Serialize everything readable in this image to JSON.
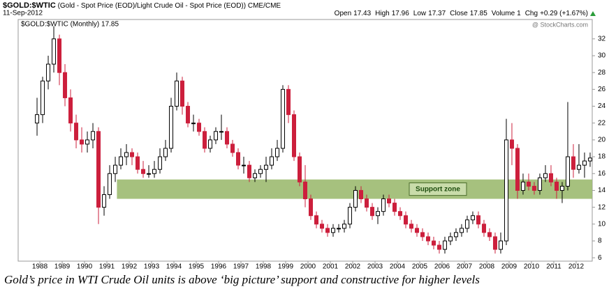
{
  "header": {
    "symbol": "$GOLD:$WTIC",
    "description": "(Gold - Spot Price (EOD)/Light Crude Oil - Spot Price (EOD))",
    "exchange": "CME/CME",
    "date": "11-Sep-2012",
    "quote": [
      {
        "label": "Open",
        "value": "17.43"
      },
      {
        "label": "High",
        "value": "17.96"
      },
      {
        "label": "Low",
        "value": "17.37"
      },
      {
        "label": "Close",
        "value": "17.85"
      },
      {
        "label": "Volume",
        "value": "1"
      },
      {
        "label": "Chg",
        "value": "+0.29 (+1.67%)"
      }
    ],
    "credit": "@ StockCharts.com"
  },
  "chart_data": {
    "type": "candlestick",
    "legend": "$GOLD:$WTIC (Monthly) 17.85",
    "up_color": "#000000",
    "down_color": "#cc1f3c",
    "xlim": [
      1987.03,
      2012.72
    ],
    "ylim": [
      5.6,
      34.3
    ],
    "xticks": [
      1988,
      1989,
      1990,
      1991,
      1992,
      1993,
      1994,
      1995,
      1996,
      1997,
      1998,
      1999,
      2000,
      2001,
      2002,
      2003,
      2004,
      2005,
      2006,
      2007,
      2008,
      2009,
      2010,
      2011,
      2012
    ],
    "yticks": [
      6,
      8,
      10,
      12,
      14,
      16,
      18,
      20,
      22,
      24,
      26,
      28,
      30,
      32
    ],
    "grid": false,
    "support_zone": {
      "label": "Support zone",
      "x_start": 1991.45,
      "low": 13.0,
      "high": 15.3,
      "color": "#9cba70"
    },
    "x": [
      1987.875,
      1988.125,
      1988.375,
      1988.625,
      1988.875,
      1989.125,
      1989.375,
      1989.625,
      1989.875,
      1990.125,
      1990.375,
      1990.625,
      1990.875,
      1991.125,
      1991.375,
      1991.625,
      1991.875,
      1992.125,
      1992.375,
      1992.625,
      1992.875,
      1993.125,
      1993.375,
      1993.625,
      1993.875,
      1994.125,
      1994.375,
      1994.625,
      1994.875,
      1995.125,
      1995.375,
      1995.625,
      1995.875,
      1996.125,
      1996.375,
      1996.625,
      1996.875,
      1997.125,
      1997.375,
      1997.625,
      1997.875,
      1998.125,
      1998.375,
      1998.625,
      1998.875,
      1999.125,
      1999.375,
      1999.625,
      1999.875,
      2000.125,
      2000.375,
      2000.625,
      2000.875,
      2001.125,
      2001.375,
      2001.625,
      2001.875,
      2002.125,
      2002.375,
      2002.625,
      2002.875,
      2003.125,
      2003.375,
      2003.625,
      2003.875,
      2004.125,
      2004.375,
      2004.625,
      2004.875,
      2005.125,
      2005.375,
      2005.625,
      2005.875,
      2006.125,
      2006.375,
      2006.625,
      2006.875,
      2007.125,
      2007.375,
      2007.625,
      2007.875,
      2008.125,
      2008.375,
      2008.625,
      2008.875,
      2009.125,
      2009.375,
      2009.625,
      2009.875,
      2010.125,
      2010.375,
      2010.625,
      2010.875,
      2011.125,
      2011.375,
      2011.625,
      2011.875,
      2012.125,
      2012.375,
      2012.625
    ],
    "open": [
      22,
      23,
      27,
      29,
      32,
      28,
      25,
      22,
      20,
      19.5,
      20,
      21,
      12,
      13.5,
      16,
      17,
      18,
      18.5,
      18,
      16.5,
      16,
      16,
      16.5,
      18,
      19,
      24,
      27,
      24,
      22,
      22,
      21,
      19,
      20,
      21,
      21,
      19.5,
      18.5,
      17,
      17,
      15.5,
      16,
      16.5,
      17,
      18,
      19,
      26,
      23,
      18,
      15,
      13,
      11,
      10,
      9.5,
      9,
      9.5,
      9.5,
      10,
      12,
      14,
      13,
      12,
      11,
      11.5,
      13,
      12.5,
      11.5,
      11,
      10,
      9.5,
      9,
      8.5,
      8,
      7.5,
      7,
      8,
      8.5,
      9,
      9.5,
      10.5,
      11,
      10,
      9,
      8.5,
      7,
      8,
      20,
      19,
      14,
      15,
      14.5,
      14,
      15.5,
      16,
      15,
      14,
      14.5,
      18,
      16.5,
      17,
      17.5
    ],
    "high": [
      25,
      27.5,
      30,
      33.5,
      32.5,
      29,
      26,
      23,
      21.5,
      21,
      22,
      21.5,
      14.5,
      17,
      18,
      19,
      19.5,
      19,
      18.5,
      17.5,
      17,
      17.5,
      19,
      20,
      25,
      28,
      27.5,
      24.5,
      23,
      22.5,
      21.5,
      20.5,
      21.5,
      23,
      21.5,
      20,
      19,
      18,
      17.5,
      16.5,
      17,
      18,
      19,
      20,
      26.5,
      26.5,
      23.5,
      18.5,
      17,
      13.5,
      11.5,
      10.5,
      10,
      10,
      10,
      10.5,
      12.5,
      14.5,
      14.5,
      13.5,
      12.5,
      12,
      13.5,
      13.5,
      13,
      12,
      11.5,
      10.5,
      10,
      9.5,
      9,
      8.5,
      8,
      8.5,
      9,
      9.5,
      10,
      11,
      11.5,
      11.5,
      10.5,
      9.5,
      9,
      9,
      22.5,
      22,
      19.5,
      16,
      16,
      15,
      16,
      17,
      17,
      15.5,
      15,
      24.5,
      19.5,
      19.5,
      18.5,
      18.5
    ],
    "low": [
      20.5,
      22,
      26,
      28,
      26.5,
      24,
      21,
      19,
      18.5,
      18.5,
      19,
      10,
      11,
      13,
      15,
      16.5,
      17,
      17,
      16,
      15.5,
      15.5,
      15.5,
      16,
      17.5,
      18.5,
      23.5,
      23,
      21.5,
      21,
      20.5,
      18.5,
      18.5,
      19.5,
      20,
      19,
      18,
      16.5,
      16,
      15,
      15,
      15.5,
      15,
      16.5,
      17.5,
      18.5,
      22,
      17.5,
      14.5,
      12,
      10.5,
      9.5,
      9,
      8.5,
      8.5,
      9,
      9,
      9.5,
      11.5,
      12.5,
      11.5,
      10.5,
      10,
      11,
      12,
      11,
      10.5,
      9.5,
      9,
      8.5,
      8,
      7.5,
      7,
      6.5,
      6.5,
      7.5,
      8,
      8.5,
      9,
      10,
      9.5,
      8.5,
      8,
      6.5,
      6.5,
      7.5,
      17,
      13,
      13.5,
      14,
      13.5,
      13.5,
      15,
      14.5,
      13,
      12.5,
      14,
      15.5,
      16,
      15.5,
      16.8
    ],
    "close": [
      23,
      27,
      29,
      32,
      28,
      25,
      22,
      20,
      19.5,
      20,
      21,
      12,
      13.5,
      16,
      17,
      18,
      18.5,
      18,
      16.5,
      16,
      16,
      16.5,
      18,
      19,
      24,
      27,
      24,
      22,
      22,
      21,
      19,
      20,
      21,
      21,
      19.5,
      18.5,
      17,
      17,
      15.5,
      16,
      16.5,
      17,
      18,
      19,
      26,
      23,
      18,
      15,
      13,
      11,
      10,
      9.5,
      9,
      9.5,
      9.5,
      10,
      12,
      14,
      13,
      12,
      11,
      11.5,
      13,
      12.5,
      11.5,
      11,
      10,
      9.5,
      9,
      8.5,
      8,
      7.5,
      7,
      8,
      8.5,
      9,
      9.5,
      10.5,
      11,
      10,
      9,
      8.5,
      7,
      8,
      20,
      19,
      14,
      15,
      14.5,
      14,
      15.5,
      16,
      15,
      14,
      14.5,
      18,
      16.5,
      17,
      17.5,
      17.85
    ]
  },
  "caption": "Gold’s price in WTI Crude Oil units is above ‘big picture’ support and constructive for higher levels"
}
